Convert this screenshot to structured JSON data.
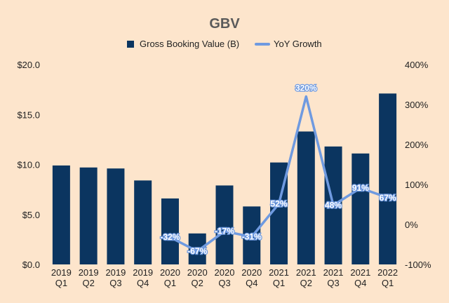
{
  "chart_data": {
    "type": "bar",
    "title": "GBV",
    "categories": [
      [
        "2019",
        "Q1"
      ],
      [
        "2019",
        "Q2"
      ],
      [
        "2019",
        "Q3"
      ],
      [
        "2019",
        "Q4"
      ],
      [
        "2020",
        "Q1"
      ],
      [
        "2020",
        "Q2"
      ],
      [
        "2020",
        "Q3"
      ],
      [
        "2020",
        "Q4"
      ],
      [
        "2021",
        "Q1"
      ],
      [
        "2021",
        "Q2"
      ],
      [
        "2021",
        "Q3"
      ],
      [
        "2021",
        "Q4"
      ],
      [
        "2022",
        "Q1"
      ]
    ],
    "series": [
      {
        "name": "Gross Booking Value (B)",
        "type": "bar",
        "axis": "left",
        "color": "#0b3560",
        "values": [
          9.9,
          9.7,
          9.6,
          8.4,
          6.6,
          3.1,
          7.9,
          5.8,
          10.2,
          13.3,
          11.8,
          11.1,
          17.1
        ]
      },
      {
        "name": "YoY Growth",
        "type": "line",
        "axis": "right",
        "color": "#6f9ae0",
        "values": [
          null,
          null,
          null,
          null,
          -32,
          -67,
          -17,
          -31,
          52,
          320,
          48,
          91,
          67
        ],
        "labels": [
          null,
          null,
          null,
          null,
          "-32%",
          "-67%",
          "-17%",
          "-31%",
          "52%",
          "320%",
          "48%",
          "91%",
          "67%"
        ]
      }
    ],
    "left_axis": {
      "range": [
        0,
        20
      ],
      "ticks": [
        0,
        5,
        10,
        15,
        20
      ],
      "tick_labels": [
        "$0.0",
        "$5.0",
        "$10.0",
        "$15.0",
        "$20.0"
      ]
    },
    "right_axis": {
      "range": [
        -100,
        400
      ],
      "ticks": [
        -100,
        0,
        100,
        200,
        300,
        400
      ],
      "tick_labels": [
        "-100%",
        "0%",
        "100%",
        "200%",
        "300%",
        "400%"
      ]
    },
    "legend_position": "top",
    "grid": false
  }
}
